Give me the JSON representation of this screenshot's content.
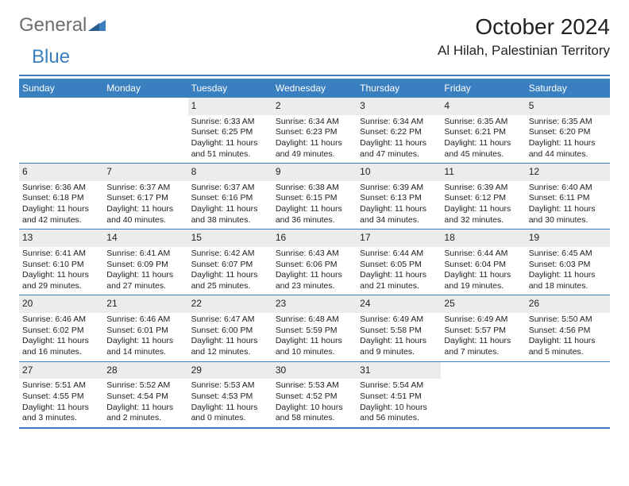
{
  "brand": {
    "part1": "General",
    "part2": "Blue"
  },
  "title": "October 2024",
  "location": "Al Hilah, Palestinian Territory",
  "colors": {
    "accent": "#3a7fbf",
    "grey_text": "#6d6e71",
    "daynum_bg": "#ececec",
    "background": "#ffffff",
    "text": "#222222"
  },
  "dow": [
    "Sunday",
    "Monday",
    "Tuesday",
    "Wednesday",
    "Thursday",
    "Friday",
    "Saturday"
  ],
  "weeks": [
    [
      {
        "n": "",
        "sr": "",
        "ss": "",
        "dl": ""
      },
      {
        "n": "",
        "sr": "",
        "ss": "",
        "dl": ""
      },
      {
        "n": "1",
        "sr": "Sunrise: 6:33 AM",
        "ss": "Sunset: 6:25 PM",
        "dl": "Daylight: 11 hours and 51 minutes."
      },
      {
        "n": "2",
        "sr": "Sunrise: 6:34 AM",
        "ss": "Sunset: 6:23 PM",
        "dl": "Daylight: 11 hours and 49 minutes."
      },
      {
        "n": "3",
        "sr": "Sunrise: 6:34 AM",
        "ss": "Sunset: 6:22 PM",
        "dl": "Daylight: 11 hours and 47 minutes."
      },
      {
        "n": "4",
        "sr": "Sunrise: 6:35 AM",
        "ss": "Sunset: 6:21 PM",
        "dl": "Daylight: 11 hours and 45 minutes."
      },
      {
        "n": "5",
        "sr": "Sunrise: 6:35 AM",
        "ss": "Sunset: 6:20 PM",
        "dl": "Daylight: 11 hours and 44 minutes."
      }
    ],
    [
      {
        "n": "6",
        "sr": "Sunrise: 6:36 AM",
        "ss": "Sunset: 6:18 PM",
        "dl": "Daylight: 11 hours and 42 minutes."
      },
      {
        "n": "7",
        "sr": "Sunrise: 6:37 AM",
        "ss": "Sunset: 6:17 PM",
        "dl": "Daylight: 11 hours and 40 minutes."
      },
      {
        "n": "8",
        "sr": "Sunrise: 6:37 AM",
        "ss": "Sunset: 6:16 PM",
        "dl": "Daylight: 11 hours and 38 minutes."
      },
      {
        "n": "9",
        "sr": "Sunrise: 6:38 AM",
        "ss": "Sunset: 6:15 PM",
        "dl": "Daylight: 11 hours and 36 minutes."
      },
      {
        "n": "10",
        "sr": "Sunrise: 6:39 AM",
        "ss": "Sunset: 6:13 PM",
        "dl": "Daylight: 11 hours and 34 minutes."
      },
      {
        "n": "11",
        "sr": "Sunrise: 6:39 AM",
        "ss": "Sunset: 6:12 PM",
        "dl": "Daylight: 11 hours and 32 minutes."
      },
      {
        "n": "12",
        "sr": "Sunrise: 6:40 AM",
        "ss": "Sunset: 6:11 PM",
        "dl": "Daylight: 11 hours and 30 minutes."
      }
    ],
    [
      {
        "n": "13",
        "sr": "Sunrise: 6:41 AM",
        "ss": "Sunset: 6:10 PM",
        "dl": "Daylight: 11 hours and 29 minutes."
      },
      {
        "n": "14",
        "sr": "Sunrise: 6:41 AM",
        "ss": "Sunset: 6:09 PM",
        "dl": "Daylight: 11 hours and 27 minutes."
      },
      {
        "n": "15",
        "sr": "Sunrise: 6:42 AM",
        "ss": "Sunset: 6:07 PM",
        "dl": "Daylight: 11 hours and 25 minutes."
      },
      {
        "n": "16",
        "sr": "Sunrise: 6:43 AM",
        "ss": "Sunset: 6:06 PM",
        "dl": "Daylight: 11 hours and 23 minutes."
      },
      {
        "n": "17",
        "sr": "Sunrise: 6:44 AM",
        "ss": "Sunset: 6:05 PM",
        "dl": "Daylight: 11 hours and 21 minutes."
      },
      {
        "n": "18",
        "sr": "Sunrise: 6:44 AM",
        "ss": "Sunset: 6:04 PM",
        "dl": "Daylight: 11 hours and 19 minutes."
      },
      {
        "n": "19",
        "sr": "Sunrise: 6:45 AM",
        "ss": "Sunset: 6:03 PM",
        "dl": "Daylight: 11 hours and 18 minutes."
      }
    ],
    [
      {
        "n": "20",
        "sr": "Sunrise: 6:46 AM",
        "ss": "Sunset: 6:02 PM",
        "dl": "Daylight: 11 hours and 16 minutes."
      },
      {
        "n": "21",
        "sr": "Sunrise: 6:46 AM",
        "ss": "Sunset: 6:01 PM",
        "dl": "Daylight: 11 hours and 14 minutes."
      },
      {
        "n": "22",
        "sr": "Sunrise: 6:47 AM",
        "ss": "Sunset: 6:00 PM",
        "dl": "Daylight: 11 hours and 12 minutes."
      },
      {
        "n": "23",
        "sr": "Sunrise: 6:48 AM",
        "ss": "Sunset: 5:59 PM",
        "dl": "Daylight: 11 hours and 10 minutes."
      },
      {
        "n": "24",
        "sr": "Sunrise: 6:49 AM",
        "ss": "Sunset: 5:58 PM",
        "dl": "Daylight: 11 hours and 9 minutes."
      },
      {
        "n": "25",
        "sr": "Sunrise: 6:49 AM",
        "ss": "Sunset: 5:57 PM",
        "dl": "Daylight: 11 hours and 7 minutes."
      },
      {
        "n": "26",
        "sr": "Sunrise: 5:50 AM",
        "ss": "Sunset: 4:56 PM",
        "dl": "Daylight: 11 hours and 5 minutes."
      }
    ],
    [
      {
        "n": "27",
        "sr": "Sunrise: 5:51 AM",
        "ss": "Sunset: 4:55 PM",
        "dl": "Daylight: 11 hours and 3 minutes."
      },
      {
        "n": "28",
        "sr": "Sunrise: 5:52 AM",
        "ss": "Sunset: 4:54 PM",
        "dl": "Daylight: 11 hours and 2 minutes."
      },
      {
        "n": "29",
        "sr": "Sunrise: 5:53 AM",
        "ss": "Sunset: 4:53 PM",
        "dl": "Daylight: 11 hours and 0 minutes."
      },
      {
        "n": "30",
        "sr": "Sunrise: 5:53 AM",
        "ss": "Sunset: 4:52 PM",
        "dl": "Daylight: 10 hours and 58 minutes."
      },
      {
        "n": "31",
        "sr": "Sunrise: 5:54 AM",
        "ss": "Sunset: 4:51 PM",
        "dl": "Daylight: 10 hours and 56 minutes."
      },
      {
        "n": "",
        "sr": "",
        "ss": "",
        "dl": ""
      },
      {
        "n": "",
        "sr": "",
        "ss": "",
        "dl": ""
      }
    ]
  ]
}
